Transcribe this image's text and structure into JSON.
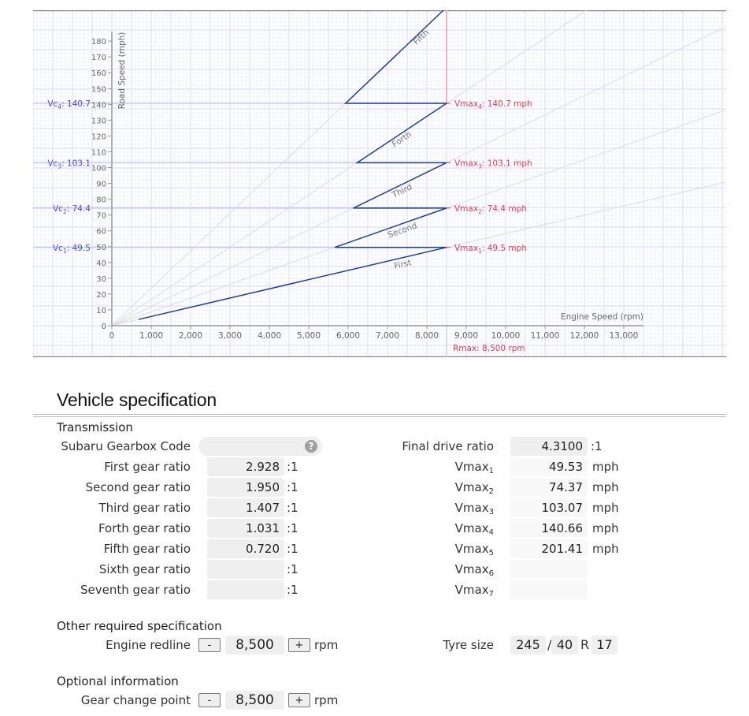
{
  "chart_data": {
    "type": "line",
    "title": "",
    "xlabel": "Engine Speed (rpm)",
    "ylabel": "Road Speed (mph)",
    "xlim": [
      0,
      13500
    ],
    "ylim": [
      0,
      180
    ],
    "x_ticks": [
      "0",
      "1,000",
      "2,000",
      "3,000",
      "4,000",
      "5,000",
      "6,000",
      "7,000",
      "8,000",
      "9,000",
      "10,000",
      "11,000",
      "12,000",
      "13,000"
    ],
    "y_ticks": [
      "0",
      "10",
      "20",
      "30",
      "40",
      "50",
      "60",
      "70",
      "80",
      "90",
      "100",
      "110",
      "120",
      "130",
      "140",
      "150",
      "160",
      "170",
      "180"
    ],
    "grid": true,
    "redline_rpm": 8500,
    "rmax_label": "Rmax: 8,500 rpm",
    "series": [
      {
        "name": "First",
        "gear": 1,
        "vmax": 49.53,
        "start_rpm": 680,
        "end_rpm": 8500
      },
      {
        "name": "Second",
        "gear": 2,
        "vmax": 74.37,
        "start_rpm": 5661,
        "end_rpm": 8500
      },
      {
        "name": "Third",
        "gear": 3,
        "vmax": 103.07,
        "start_rpm": 6133,
        "end_rpm": 8500
      },
      {
        "name": "Forth",
        "gear": 4,
        "vmax": 140.66,
        "start_rpm": 6228,
        "end_rpm": 8500
      },
      {
        "name": "Fifth",
        "gear": 5,
        "vmax": 201.41,
        "start_rpm": 5936,
        "end_rpm": 8500
      }
    ],
    "vmax_labels": [
      {
        "label": "Vmax",
        "sub": "1",
        "text": ": 49.5 mph",
        "value": 49.5
      },
      {
        "label": "Vmax",
        "sub": "2",
        "text": ": 74.4 mph",
        "value": 74.4
      },
      {
        "label": "Vmax",
        "sub": "3",
        "text": ": 103.1 mph",
        "value": 103.1
      },
      {
        "label": "Vmax",
        "sub": "4",
        "text": ": 140.7 mph",
        "value": 140.7
      }
    ],
    "vc_labels": [
      {
        "label": "Vc",
        "sub": "1",
        "text": ": 49.5",
        "value": 49.5
      },
      {
        "label": "Vc",
        "sub": "2",
        "text": ": 74.4",
        "value": 74.4
      },
      {
        "label": "Vc",
        "sub": "3",
        "text": ": 103.1",
        "value": 103.1
      },
      {
        "label": "Vc",
        "sub": "4",
        "text": ": 140.7",
        "value": 140.7
      }
    ],
    "colors": {
      "gear_line": "#1f3f8f",
      "ratio_line": "#dddddd",
      "vmax": "#e8394a",
      "vc": "#4a4ae8",
      "grid_minor": "#f0f0ff",
      "grid_major": "#e4e4fb"
    }
  },
  "spec": {
    "heading": "Vehicle specification",
    "transmission_title": "Transmission",
    "gearbox_code_label": "Subaru Gearbox Code",
    "gearbox_code_value": "",
    "help_glyph": "?",
    "ratio_unit": ":1",
    "gears": [
      {
        "label": "First gear ratio",
        "value": "2.928"
      },
      {
        "label": "Second gear ratio",
        "value": "1.950"
      },
      {
        "label": "Third gear ratio",
        "value": "1.407"
      },
      {
        "label": "Forth gear ratio",
        "value": "1.031"
      },
      {
        "label": "Fifth gear ratio",
        "value": "0.720"
      },
      {
        "label": "Sixth gear ratio",
        "value": ""
      },
      {
        "label": "Seventh gear ratio",
        "value": ""
      }
    ],
    "final_drive_label": "Final drive ratio",
    "final_drive_value": "4.3100",
    "vmax": [
      {
        "label": "Vmax",
        "sub": "1",
        "value": "49.53",
        "unit": "mph"
      },
      {
        "label": "Vmax",
        "sub": "2",
        "value": "74.37",
        "unit": "mph"
      },
      {
        "label": "Vmax",
        "sub": "3",
        "value": "103.07",
        "unit": "mph"
      },
      {
        "label": "Vmax",
        "sub": "4",
        "value": "140.66",
        "unit": "mph"
      },
      {
        "label": "Vmax",
        "sub": "5",
        "value": "201.41",
        "unit": "mph"
      },
      {
        "label": "Vmax",
        "sub": "6",
        "value": "",
        "unit": ""
      },
      {
        "label": "Vmax",
        "sub": "7",
        "value": "",
        "unit": ""
      }
    ],
    "other_title": "Other required specification",
    "redline_label": "Engine redline",
    "redline_value": "8,500",
    "minus": "-",
    "plus": "+",
    "rpm_unit": "rpm",
    "tyre_label": "Tyre size",
    "tyre_width": "245",
    "tyre_sep": "/",
    "tyre_profile": "40",
    "tyre_r": "R",
    "tyre_rim": "17",
    "optional_title": "Optional information",
    "gear_change_label": "Gear change point",
    "gear_change_value": "8,500"
  }
}
